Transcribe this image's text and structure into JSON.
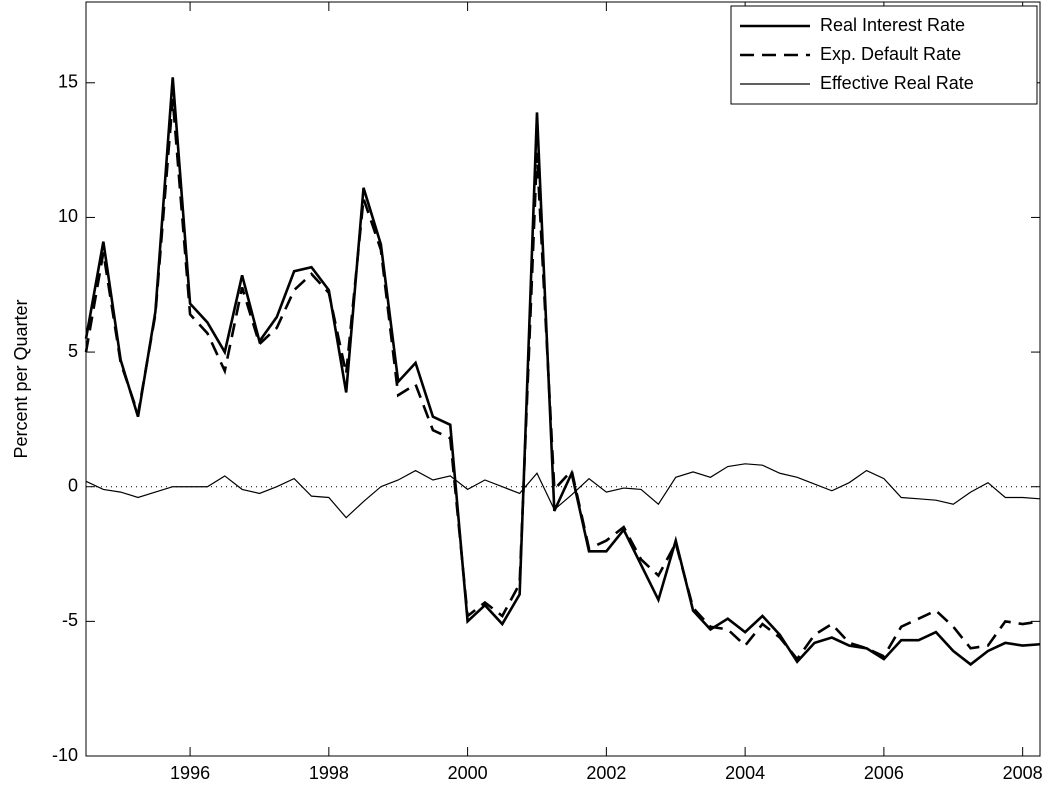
{
  "chart_data": {
    "type": "line",
    "ylabel": "Percent per Quarter",
    "x": [
      1994.5,
      1994.75,
      1995,
      1995.25,
      1995.5,
      1995.75,
      1996,
      1996.25,
      1996.5,
      1996.75,
      1997,
      1997.25,
      1997.5,
      1997.75,
      1998,
      1998.25,
      1998.5,
      1998.75,
      1999,
      1999.25,
      1999.5,
      1999.75,
      2000,
      2000.25,
      2000.5,
      2000.75,
      2001,
      2001.25,
      2001.5,
      2001.75,
      2002,
      2002.25,
      2002.5,
      2002.75,
      2003,
      2003.25,
      2003.5,
      2003.75,
      2004,
      2004.25,
      2004.5,
      2004.75,
      2005,
      2005.25,
      2005.5,
      2005.75,
      2006,
      2006.25,
      2006.5,
      2006.75,
      2007,
      2007.25,
      2007.5,
      2007.75,
      2008,
      2008.25
    ],
    "series": [
      {
        "name": "Real Interest Rate",
        "color": "#000000",
        "style": "solid",
        "width": 2.6,
        "values": [
          5.5,
          9.1,
          4.7,
          2.6,
          6.5,
          15.2,
          6.8,
          6.1,
          5.0,
          7.85,
          5.4,
          6.3,
          8.0,
          8.15,
          7.3,
          3.5,
          11.1,
          9.0,
          3.9,
          4.6,
          2.6,
          2.3,
          -5.0,
          -4.4,
          -5.1,
          -4.0,
          13.9,
          -0.9,
          0.5,
          -2.4,
          -2.4,
          -1.6,
          -2.9,
          -4.2,
          -2.0,
          -4.6,
          -5.3,
          -4.9,
          -5.4,
          -4.8,
          -5.5,
          -6.5,
          -5.8,
          -5.6,
          -5.9,
          -6.0,
          -6.4,
          -5.7,
          -5.7,
          -5.4,
          -6.1,
          -6.6,
          -6.1,
          -5.8,
          -5.9,
          -5.85
        ]
      },
      {
        "name": "Exp. Default Rate",
        "color": "#000000",
        "style": "dashed",
        "width": 2.6,
        "values": [
          5.0,
          8.7,
          4.6,
          2.7,
          6.4,
          14.4,
          6.4,
          5.7,
          4.3,
          7.4,
          5.3,
          5.9,
          7.3,
          7.9,
          7.2,
          4.2,
          10.7,
          8.8,
          3.4,
          3.8,
          2.1,
          1.8,
          -4.8,
          -4.3,
          -4.8,
          -3.6,
          12.4,
          -0.1,
          0.6,
          -2.3,
          -2.0,
          -1.5,
          -2.7,
          -3.3,
          -2.1,
          -4.5,
          -5.2,
          -5.3,
          -5.9,
          -5.1,
          -5.6,
          -6.4,
          -5.5,
          -5.1,
          -5.8,
          -6.0,
          -6.3,
          -5.2,
          -4.9,
          -4.6,
          -5.2,
          -6.0,
          -5.9,
          -5.0,
          -5.1,
          -5.0
        ]
      },
      {
        "name": "Effective Real Rate",
        "color": "#000000",
        "style": "solid",
        "width": 1.2,
        "values": [
          0.2,
          -0.1,
          -0.2,
          -0.4,
          -0.2,
          0.0,
          0.0,
          0.0,
          0.4,
          -0.1,
          -0.25,
          0.0,
          0.3,
          -0.35,
          -0.4,
          -1.15,
          -0.55,
          0.0,
          0.25,
          0.6,
          0.25,
          0.4,
          -0.1,
          0.25,
          0.0,
          -0.25,
          0.5,
          -0.85,
          -0.3,
          0.3,
          -0.2,
          -0.05,
          -0.1,
          -0.65,
          0.35,
          0.55,
          0.35,
          0.75,
          0.85,
          0.8,
          0.5,
          0.35,
          0.1,
          -0.15,
          0.15,
          0.6,
          0.3,
          -0.4,
          -0.45,
          -0.5,
          -0.65,
          -0.2,
          0.15,
          -0.4,
          -0.4,
          -0.45
        ]
      }
    ],
    "xlim": [
      1994.5,
      2008.25
    ],
    "ylim": [
      -10,
      18
    ],
    "xticks": [
      1996,
      1998,
      2000,
      2002,
      2004,
      2006,
      2008
    ],
    "yticks": [
      -10,
      -5,
      0,
      5,
      10,
      15
    ],
    "hline": 0,
    "legend": "upper right"
  }
}
